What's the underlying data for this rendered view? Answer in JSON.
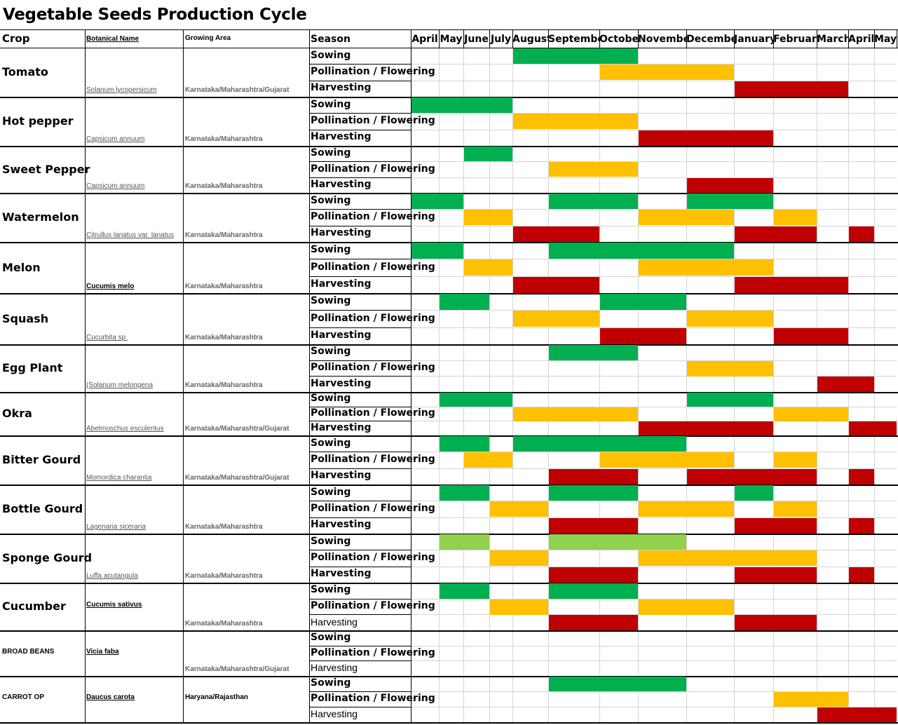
{
  "title": "Vegetable Seeds Production Cycle",
  "headers": {
    "crop": "Crop",
    "botanical": "Botanical Name",
    "growing_area": "Growing Area",
    "season": "Season"
  },
  "colors": {
    "sowing": "#00b050",
    "sowing_light": "#92d050",
    "pollination": "#ffc000",
    "harvesting": "#c00000"
  },
  "chart_data": {
    "type": "table",
    "months": [
      "April",
      "May",
      "June",
      "July",
      "August",
      "September",
      "October",
      "November",
      "December",
      "January",
      "February",
      "March",
      "April",
      "May"
    ],
    "stages": [
      "Sowing",
      "Pollination / Flowering",
      "Harvesting"
    ],
    "crops": [
      {
        "name": "Tomato",
        "botanical": "Solanum lycopersicum",
        "area": "Karnataka/Maharashtra/Gujarat",
        "sowing": [
          [
            4,
            6
          ]
        ],
        "pollination": [
          [
            6,
            8
          ]
        ],
        "harvesting": [
          [
            9,
            11
          ]
        ]
      },
      {
        "name": "Hot pepper",
        "botanical": "Capsicum annuum",
        "area": "Karnataka/Maharashtra",
        "sowing": [
          [
            0,
            3
          ]
        ],
        "pollination": [
          [
            4,
            6
          ]
        ],
        "harvesting": [
          [
            7,
            9
          ]
        ]
      },
      {
        "name": "Sweet Pepper",
        "botanical": "Capsicum annuum",
        "area": "Karnataka/Maharashtra",
        "sowing": [
          [
            2,
            3
          ]
        ],
        "pollination": [
          [
            5,
            6
          ]
        ],
        "harvesting": [
          [
            8,
            9
          ]
        ]
      },
      {
        "name": "Watermelon",
        "botanical": "Citrullus lanatus var. lanatus",
        "area": "Karnataka/Maharashtra",
        "sowing": [
          [
            0,
            1
          ],
          [
            5,
            6
          ],
          [
            8,
            9
          ]
        ],
        "pollination": [
          [
            2,
            3
          ],
          [
            7,
            8
          ],
          [
            10,
            10
          ]
        ],
        "harvesting": [
          [
            4,
            5
          ],
          [
            9,
            10
          ],
          [
            12,
            12
          ]
        ]
      },
      {
        "name": "Melon",
        "botanical": "Cucumis melo",
        "area": "Karnataka/Maharashtra",
        "sowing": [
          [
            0,
            1
          ],
          [
            5,
            8
          ]
        ],
        "pollination": [
          [
            2,
            3
          ],
          [
            7,
            9
          ]
        ],
        "harvesting": [
          [
            4,
            5
          ],
          [
            9,
            11
          ]
        ]
      },
      {
        "name": "Squash",
        "botanical": "Cucurbita sp.",
        "area": "Karnataka/Maharashtra",
        "sowing": [
          [
            1,
            2
          ],
          [
            6,
            7
          ]
        ],
        "pollination": [
          [
            4,
            5
          ],
          [
            8,
            9
          ]
        ],
        "harvesting": [
          [
            6,
            7
          ],
          [
            10,
            11
          ]
        ]
      },
      {
        "name": "Egg Plant",
        "botanical": "(Solanum melongena",
        "area": "Karnataka/Maharashtra",
        "sowing": [
          [
            5,
            6
          ]
        ],
        "pollination": [
          [
            8,
            9
          ]
        ],
        "harvesting": [
          [
            11,
            12
          ]
        ]
      },
      {
        "name": "Okra",
        "botanical": "Abelmoschus esculentus",
        "area": "Karnataka/Maharashtra/Gujarat",
        "sowing": [
          [
            1,
            3
          ],
          [
            8,
            9
          ]
        ],
        "pollination": [
          [
            4,
            6
          ],
          [
            10,
            11
          ]
        ],
        "harvesting": [
          [
            7,
            9
          ],
          [
            12,
            13
          ]
        ]
      },
      {
        "name": "Bitter Gourd",
        "botanical": "Momordica charantia",
        "area": "Karnataka/Maharashtra/Gujarat",
        "sowing": [
          [
            1,
            2
          ],
          [
            4,
            7
          ]
        ],
        "pollination": [
          [
            2,
            3
          ],
          [
            6,
            8
          ],
          [
            10,
            10
          ]
        ],
        "harvesting": [
          [
            5,
            6
          ],
          [
            8,
            10
          ],
          [
            12,
            12
          ]
        ]
      },
      {
        "name": "Bottle Gourd",
        "botanical": "Lagenaria siceraria",
        "area": "Karnataka/Maharashtra",
        "sowing": [
          [
            1,
            2
          ],
          [
            5,
            6
          ],
          [
            9,
            9
          ]
        ],
        "pollination": [
          [
            3,
            4
          ],
          [
            7,
            8
          ],
          [
            10,
            10
          ]
        ],
        "harvesting": [
          [
            5,
            6
          ],
          [
            9,
            10
          ],
          [
            12,
            12
          ]
        ]
      },
      {
        "name": "Sponge Gourd",
        "botanical": "Luffa acutangula",
        "area": "Karnataka/Maharashtra",
        "sowing_light": [
          [
            1,
            2
          ],
          [
            5,
            7
          ]
        ],
        "pollination": [
          [
            3,
            4
          ],
          [
            7,
            10
          ]
        ],
        "harvesting": [
          [
            5,
            6
          ],
          [
            9,
            10
          ],
          [
            12,
            12
          ]
        ]
      },
      {
        "name": "Cucumber",
        "botanical": "Cucumis sativus",
        "area": "Karnataka/Maharashtra",
        "sowing": [
          [
            1,
            2
          ],
          [
            5,
            6
          ]
        ],
        "pollination": [
          [
            3,
            4
          ],
          [
            7,
            8
          ]
        ],
        "harvesting": [
          [
            5,
            6
          ],
          [
            9,
            10
          ]
        ]
      },
      {
        "name": "BROAD BEANS",
        "botanical": "Vicia faba",
        "area": "Karnataka/Maharashtra/Gujarat"
      },
      {
        "name": "CARROT OP",
        "botanical": "Daucus carota",
        "area": "Haryana/Rajasthan",
        "sowing": [
          [
            5,
            7
          ]
        ],
        "pollination": [
          [
            10,
            11
          ]
        ],
        "harvesting": [
          [
            11,
            13
          ]
        ]
      }
    ]
  }
}
